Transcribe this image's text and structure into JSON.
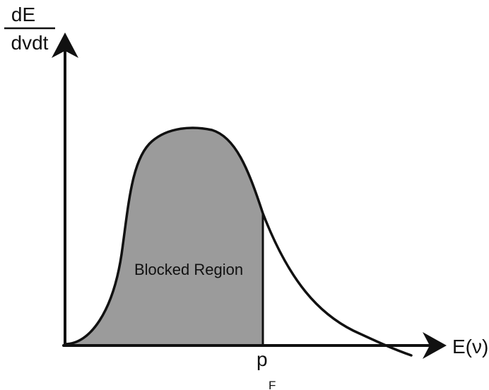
{
  "y_axis": {
    "label_numerator": "dE",
    "label_denominator": "dvdt"
  },
  "x_axis": {
    "label": "E(ν)"
  },
  "cutoff": {
    "label_main": "p",
    "label_sub": "F"
  },
  "region": {
    "label": "Blocked Region",
    "fill_color": "#9b9b9b"
  },
  "colors": {
    "ink": "#111111",
    "background": "#ffffff"
  }
}
